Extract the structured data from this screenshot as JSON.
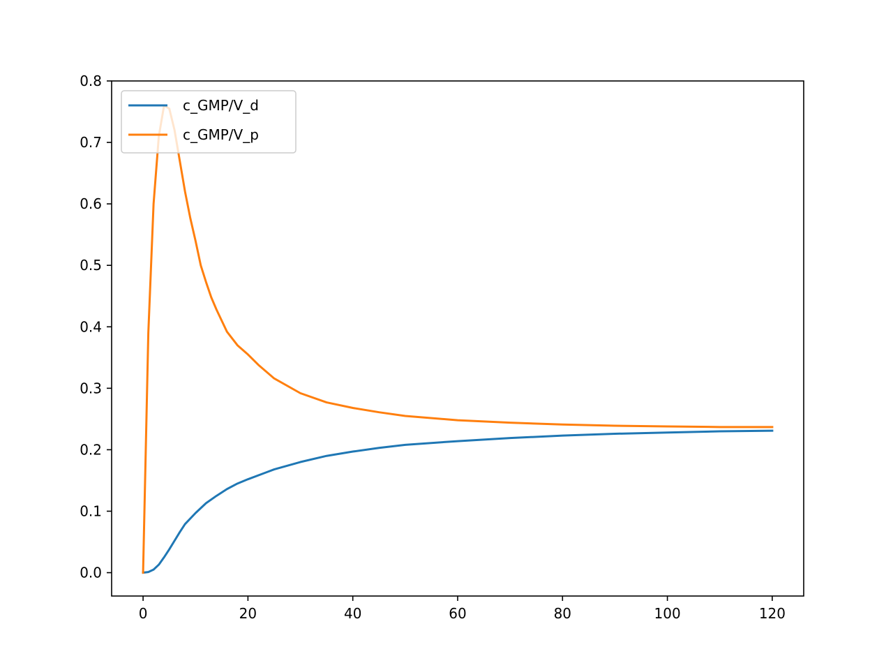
{
  "chart_data": {
    "type": "line",
    "title": "",
    "xlabel": "",
    "ylabel": "",
    "xlim": [
      -6,
      126
    ],
    "ylim": [
      -0.038,
      0.8
    ],
    "xticks": [
      0,
      20,
      40,
      60,
      80,
      100,
      120
    ],
    "xtick_labels": [
      "0",
      "20",
      "40",
      "60",
      "80",
      "100",
      "120"
    ],
    "yticks": [
      0.0,
      0.1,
      0.2,
      0.3,
      0.4,
      0.5,
      0.6,
      0.7,
      0.8
    ],
    "ytick_labels": [
      "0.0",
      "0.1",
      "0.2",
      "0.3",
      "0.4",
      "0.5",
      "0.6",
      "0.7",
      "0.8"
    ],
    "grid": false,
    "legend_position": "upper-left",
    "series": [
      {
        "name": "c_GMP/V_d",
        "color": "#1f77b4",
        "x": [
          0,
          1,
          2,
          3,
          4,
          5,
          6,
          7,
          8,
          10,
          12,
          14,
          16,
          18,
          20,
          25,
          30,
          35,
          40,
          45,
          50,
          60,
          70,
          80,
          90,
          100,
          110,
          120
        ],
        "y": [
          0.0,
          0.001,
          0.005,
          0.013,
          0.025,
          0.038,
          0.052,
          0.066,
          0.079,
          0.097,
          0.113,
          0.125,
          0.136,
          0.145,
          0.152,
          0.168,
          0.18,
          0.19,
          0.197,
          0.203,
          0.208,
          0.214,
          0.219,
          0.223,
          0.226,
          0.228,
          0.23,
          0.231
        ]
      },
      {
        "name": "c_GMP/V_p",
        "color": "#ff7f0e",
        "x": [
          0,
          1,
          2,
          3,
          4,
          5,
          6,
          7,
          8,
          9,
          10,
          11,
          12,
          13,
          14,
          15,
          16,
          18,
          20,
          22,
          25,
          30,
          35,
          40,
          45,
          50,
          60,
          70,
          80,
          90,
          100,
          110,
          120
        ],
        "y": [
          0.0,
          0.39,
          0.6,
          0.71,
          0.76,
          0.755,
          0.72,
          0.67,
          0.62,
          0.577,
          0.54,
          0.5,
          0.473,
          0.448,
          0.428,
          0.41,
          0.392,
          0.37,
          0.355,
          0.338,
          0.316,
          0.292,
          0.277,
          0.268,
          0.261,
          0.255,
          0.248,
          0.244,
          0.241,
          0.239,
          0.238,
          0.237,
          0.237
        ]
      }
    ]
  }
}
